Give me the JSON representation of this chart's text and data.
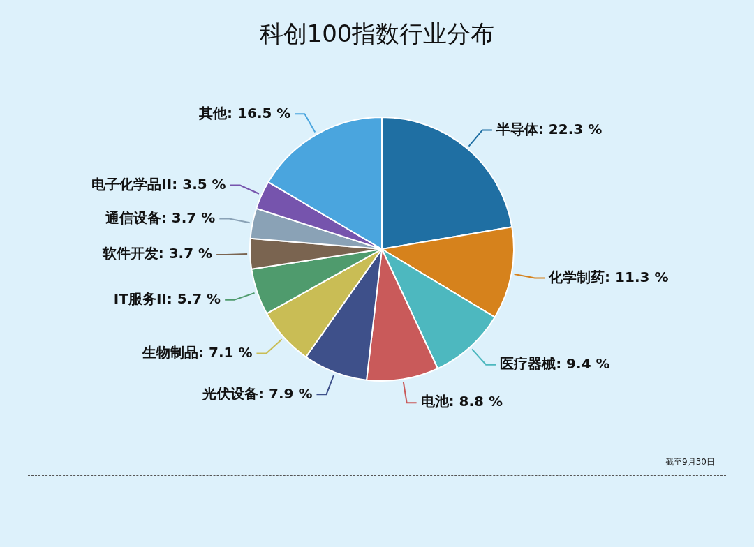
{
  "chart_data": {
    "type": "pie",
    "title": "科创100指数行业分布",
    "categories": [
      "半导体",
      "化学制药",
      "医疗器械",
      "电池",
      "光伏设备",
      "生物制品",
      "IT服务II",
      "软件开发",
      "通信设备",
      "电子化学品II",
      "其他"
    ],
    "values": [
      22.3,
      11.3,
      9.4,
      8.8,
      7.9,
      7.1,
      5.7,
      3.7,
      3.7,
      3.5,
      16.5
    ],
    "value_labels": [
      "22.3 %",
      "11.3 %",
      "9.4 %",
      "8.8 %",
      "7.9 %",
      "7.1 %",
      "5.7 %",
      "3.7 %",
      "3.7 %",
      "3.5 %",
      "16.5 %"
    ],
    "colors": [
      "#1f6fa3",
      "#d6821c",
      "#4db8bf",
      "#c95a5a",
      "#3e508a",
      "#c9bd55",
      "#4f9b6d",
      "#7a6450",
      "#8aa2b6",
      "#7654ad",
      "#4aa5de"
    ],
    "legend": false,
    "annotations": [
      "截至9月30日"
    ]
  }
}
